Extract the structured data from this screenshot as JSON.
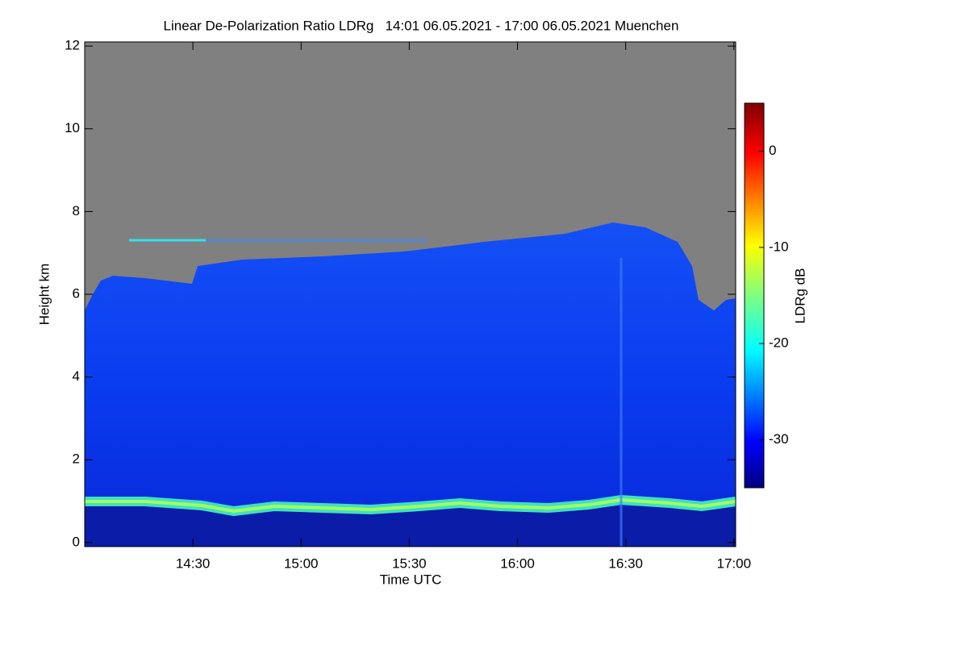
{
  "chart_data": {
    "type": "heatmap",
    "title": "Linear De-Polarization Ratio LDRg   14:01 06.05.2021 - 17:00 06.05.2021 Muenchen",
    "xlabel": "Time UTC",
    "ylabel": "Height km",
    "colorbar_label": "LDRg dB",
    "xlim": [
      840,
      1020.5
    ],
    "xticks": [
      {
        "value": 870,
        "label": "14:30"
      },
      {
        "value": 900,
        "label": "15:00"
      },
      {
        "value": 930,
        "label": "15:30"
      },
      {
        "value": 960,
        "label": "16:00"
      },
      {
        "value": 990,
        "label": "16:30"
      },
      {
        "value": 1020,
        "label": "17:00"
      }
    ],
    "ylim": [
      -0.1,
      12.1
    ],
    "yticks": [
      0,
      2,
      4,
      6,
      8,
      10,
      12
    ],
    "clim": [
      -35,
      5
    ],
    "cticks": [
      -30,
      -20,
      -10,
      0
    ]
  }
}
